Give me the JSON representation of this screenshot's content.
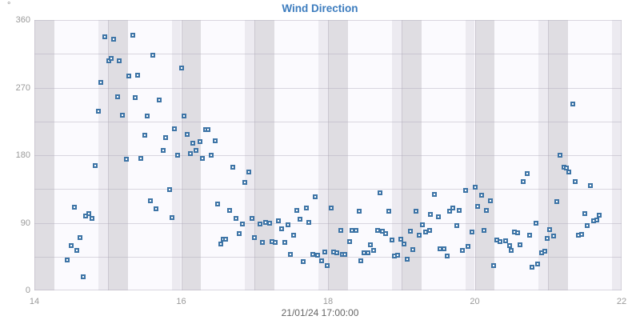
{
  "title": "Wind Direction",
  "unit_label": "°",
  "x_axis_label": "21/01/24 17:00:00",
  "colors": {
    "title": "#3c7cbe",
    "marker": "#3d74a6",
    "plot_background": "#fbfafe",
    "band_light": "#eceaf0",
    "band_dark": "#dfdde2",
    "gridline": "#c9c4d1",
    "tick_label": "#9a9a9a",
    "date_label": "#666666"
  },
  "chart_data": {
    "type": "scatter",
    "title": "Wind Direction",
    "xlabel": "21/01/24 17:00:00",
    "ylabel": "°",
    "xlim": [
      14,
      22
    ],
    "ylim": [
      0,
      360
    ],
    "x_ticks": [
      14,
      16,
      18,
      20,
      22
    ],
    "y_ticks": [
      0,
      90,
      180,
      270,
      360
    ],
    "y_grid_step": 45,
    "legend": "none",
    "bands": {
      "hours": [
        14,
        15,
        16,
        17,
        18,
        19,
        20,
        21,
        22
      ],
      "before": 0.13,
      "after": 0.27
    },
    "points": [
      [
        14.45,
        40
      ],
      [
        14.5,
        60
      ],
      [
        14.54,
        111
      ],
      [
        14.58,
        53
      ],
      [
        14.62,
        70
      ],
      [
        14.66,
        18
      ],
      [
        14.7,
        99
      ],
      [
        14.74,
        102
      ],
      [
        14.78,
        96
      ],
      [
        14.83,
        166
      ],
      [
        14.87,
        239
      ],
      [
        14.91,
        277
      ],
      [
        14.96,
        338
      ],
      [
        15.01,
        306
      ],
      [
        15.05,
        309
      ],
      [
        15.08,
        334
      ],
      [
        15.13,
        258
      ],
      [
        15.16,
        306
      ],
      [
        15.2,
        233
      ],
      [
        15.25,
        175
      ],
      [
        15.29,
        285
      ],
      [
        15.34,
        340
      ],
      [
        15.37,
        257
      ],
      [
        15.41,
        286
      ],
      [
        15.45,
        176
      ],
      [
        15.5,
        207
      ],
      [
        15.54,
        232
      ],
      [
        15.58,
        119
      ],
      [
        15.61,
        313
      ],
      [
        15.66,
        109
      ],
      [
        15.7,
        253
      ],
      [
        15.75,
        186
      ],
      [
        15.79,
        203
      ],
      [
        15.84,
        134
      ],
      [
        15.87,
        97
      ],
      [
        15.91,
        215
      ],
      [
        15.95,
        180
      ],
      [
        16.0,
        296
      ],
      [
        16.04,
        232
      ],
      [
        16.08,
        208
      ],
      [
        16.12,
        182
      ],
      [
        16.16,
        196
      ],
      [
        16.2,
        186
      ],
      [
        16.26,
        198
      ],
      [
        16.29,
        176
      ],
      [
        16.33,
        214
      ],
      [
        16.36,
        214
      ],
      [
        16.41,
        180
      ],
      [
        16.46,
        199
      ],
      [
        16.5,
        115
      ],
      [
        16.54,
        62
      ],
      [
        16.57,
        68
      ],
      [
        16.61,
        68
      ],
      [
        16.66,
        106
      ],
      [
        16.7,
        164
      ],
      [
        16.75,
        96
      ],
      [
        16.79,
        76
      ],
      [
        16.83,
        88
      ],
      [
        16.87,
        144
      ],
      [
        16.92,
        158
      ],
      [
        16.96,
        96
      ],
      [
        17.0,
        70
      ],
      [
        17.07,
        88
      ],
      [
        17.11,
        64
      ],
      [
        17.15,
        91
      ],
      [
        17.2,
        89
      ],
      [
        17.24,
        65
      ],
      [
        17.28,
        64
      ],
      [
        17.32,
        93
      ],
      [
        17.37,
        82
      ],
      [
        17.41,
        64
      ],
      [
        17.46,
        87
      ],
      [
        17.49,
        48
      ],
      [
        17.53,
        74
      ],
      [
        17.58,
        106
      ],
      [
        17.62,
        95
      ],
      [
        17.66,
        38
      ],
      [
        17.71,
        110
      ],
      [
        17.74,
        91
      ],
      [
        17.79,
        48
      ],
      [
        17.83,
        125
      ],
      [
        17.86,
        47
      ],
      [
        17.91,
        39
      ],
      [
        17.96,
        51
      ],
      [
        17.99,
        33
      ],
      [
        18.04,
        110
      ],
      [
        18.08,
        51
      ],
      [
        18.12,
        50
      ],
      [
        18.17,
        80
      ],
      [
        18.2,
        48
      ],
      [
        18.23,
        48
      ],
      [
        18.29,
        65
      ],
      [
        18.33,
        80
      ],
      [
        18.38,
        80
      ],
      [
        18.42,
        105
      ],
      [
        18.45,
        39
      ],
      [
        18.49,
        50
      ],
      [
        18.54,
        50
      ],
      [
        18.58,
        61
      ],
      [
        18.62,
        53
      ],
      [
        18.68,
        80
      ],
      [
        18.71,
        130
      ],
      [
        18.74,
        79
      ],
      [
        18.79,
        76
      ],
      [
        18.83,
        105
      ],
      [
        18.87,
        67
      ],
      [
        18.9,
        46
      ],
      [
        18.95,
        47
      ],
      [
        18.99,
        68
      ],
      [
        19.04,
        62
      ],
      [
        19.08,
        42
      ],
      [
        19.12,
        79
      ],
      [
        19.16,
        54
      ],
      [
        19.2,
        105
      ],
      [
        19.24,
        73
      ],
      [
        19.29,
        87
      ],
      [
        19.33,
        78
      ],
      [
        19.38,
        80
      ],
      [
        19.4,
        101
      ],
      [
        19.45,
        128
      ],
      [
        19.5,
        98
      ],
      [
        19.53,
        55
      ],
      [
        19.58,
        55
      ],
      [
        19.62,
        46
      ],
      [
        19.66,
        105
      ],
      [
        19.7,
        110
      ],
      [
        19.75,
        86
      ],
      [
        19.79,
        107
      ],
      [
        19.83,
        53
      ],
      [
        19.87,
        133
      ],
      [
        19.91,
        59
      ],
      [
        19.96,
        78
      ],
      [
        20.0,
        137
      ],
      [
        20.04,
        112
      ],
      [
        20.09,
        127
      ],
      [
        20.12,
        80
      ],
      [
        20.16,
        106
      ],
      [
        20.21,
        119
      ],
      [
        20.26,
        33
      ],
      [
        20.3,
        67
      ],
      [
        20.34,
        65
      ],
      [
        20.42,
        66
      ],
      [
        20.47,
        60
      ],
      [
        20.5,
        53
      ],
      [
        20.54,
        78
      ],
      [
        20.58,
        77
      ],
      [
        20.62,
        61
      ],
      [
        20.66,
        145
      ],
      [
        20.71,
        156
      ],
      [
        20.75,
        73
      ],
      [
        20.78,
        31
      ],
      [
        20.83,
        89
      ],
      [
        20.86,
        35
      ],
      [
        20.91,
        50
      ],
      [
        20.95,
        52
      ],
      [
        20.99,
        69
      ],
      [
        21.02,
        81
      ],
      [
        21.07,
        72
      ],
      [
        21.12,
        118
      ],
      [
        21.16,
        180
      ],
      [
        21.21,
        164
      ],
      [
        21.25,
        163
      ],
      [
        21.28,
        158
      ],
      [
        21.33,
        248
      ],
      [
        21.37,
        145
      ],
      [
        21.41,
        74
      ],
      [
        21.45,
        75
      ],
      [
        21.5,
        102
      ],
      [
        21.53,
        86
      ],
      [
        21.58,
        140
      ],
      [
        21.62,
        93
      ],
      [
        21.66,
        94
      ],
      [
        21.7,
        100
      ]
    ]
  }
}
